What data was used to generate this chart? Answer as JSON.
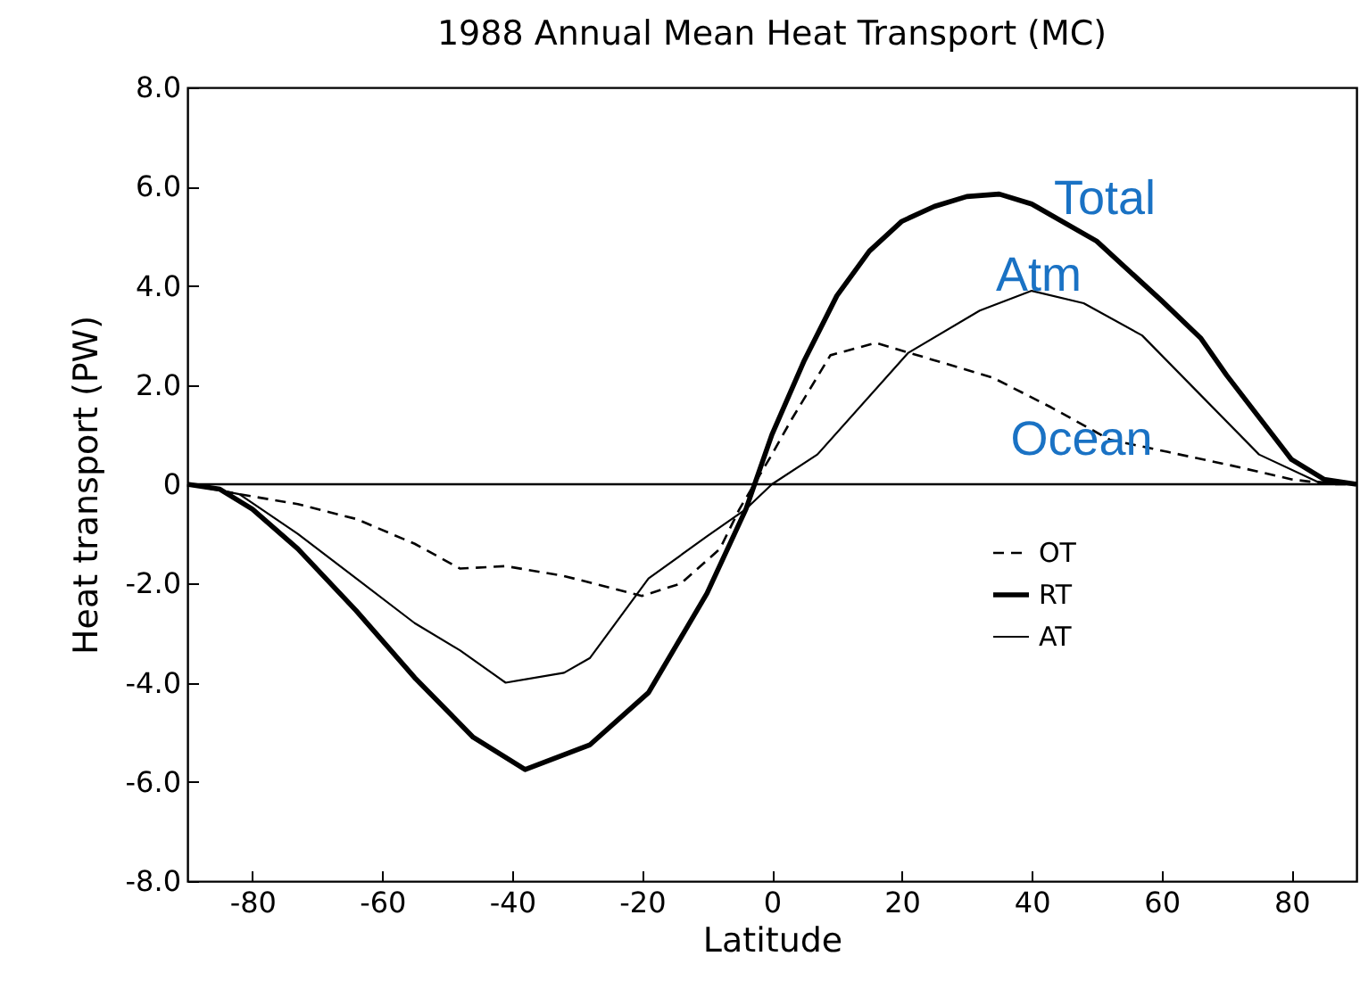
{
  "chart_data": {
    "type": "line",
    "title": "1988 Annual Mean Heat Transport (MC)",
    "xlabel": "Latitude",
    "ylabel": "Heat transport (PW)",
    "xlim": [
      -90,
      90
    ],
    "xticks": [
      -80,
      -60,
      -40,
      -20,
      0,
      20,
      40,
      60,
      80
    ],
    "ylim": [
      -8,
      8
    ],
    "yticks": [
      {
        "value": -8,
        "label": "-8.0"
      },
      {
        "value": -6,
        "label": "-6.0"
      },
      {
        "value": -4,
        "label": "-4.0"
      },
      {
        "value": -2,
        "label": "-2.0"
      },
      {
        "value": 0,
        "label": "0"
      },
      {
        "value": 2,
        "label": "2.0"
      },
      {
        "value": 4,
        "label": "4.0"
      },
      {
        "value": 6,
        "label": "6.0"
      },
      {
        "value": 8,
        "label": "8.0"
      }
    ],
    "grid": false,
    "legend": "right",
    "marker": "none",
    "series": [
      {
        "name": "OT",
        "color": "#000000",
        "line_style": "dashed",
        "x": [
          -90,
          -82,
          -73,
          -64,
          -55,
          -48,
          -41,
          -32,
          -20,
          -14,
          -8,
          -5,
          0,
          3,
          9,
          16,
          25,
          34,
          43,
          52,
          61,
          70,
          80,
          86,
          90
        ],
        "values": [
          0,
          -0.2,
          -0.4,
          -0.7,
          -1.2,
          -1.7,
          -1.65,
          -1.85,
          -2.25,
          -2.0,
          -1.3,
          -0.5,
          0.6,
          1.3,
          2.6,
          2.85,
          2.5,
          2.15,
          1.55,
          0.9,
          0.65,
          0.4,
          0.1,
          0,
          0
        ]
      },
      {
        "name": "RT",
        "color": "#000000",
        "line_style": "solid",
        "x": [
          -90,
          -85,
          -80,
          -73,
          -64,
          -55,
          -46,
          -38,
          -28,
          -19,
          -10,
          -4,
          0,
          5,
          10,
          15,
          20,
          25,
          30,
          35,
          40,
          50,
          60,
          66,
          70,
          80,
          85,
          90
        ],
        "values": [
          0,
          -0.1,
          -0.5,
          -1.3,
          -2.55,
          -3.9,
          -5.1,
          -5.75,
          -5.25,
          -4.2,
          -2.2,
          -0.5,
          1.0,
          2.5,
          3.8,
          4.7,
          5.3,
          5.6,
          5.8,
          5.85,
          5.65,
          4.9,
          3.7,
          2.95,
          2.2,
          0.5,
          0.1,
          0
        ]
      },
      {
        "name": "AT",
        "color": "#000000",
        "line_style": "solid",
        "x": [
          -90,
          -82,
          -73,
          -64,
          -55,
          -48,
          -41,
          -32,
          -28,
          -19,
          -10,
          -4,
          0,
          7,
          21,
          32,
          40,
          48,
          57,
          66,
          75,
          84,
          90
        ],
        "values": [
          0,
          -0.2,
          -1.0,
          -1.9,
          -2.8,
          -3.35,
          -4.0,
          -3.8,
          -3.5,
          -1.9,
          -1.05,
          -0.5,
          0,
          0.6,
          2.65,
          3.5,
          3.9,
          3.65,
          3.0,
          1.8,
          0.6,
          0.05,
          0
        ]
      }
    ],
    "ref_lines": [
      {
        "axis": "y",
        "value": 0
      }
    ],
    "annotations": [
      "Total",
      "Atm",
      "Ocean"
    ]
  }
}
